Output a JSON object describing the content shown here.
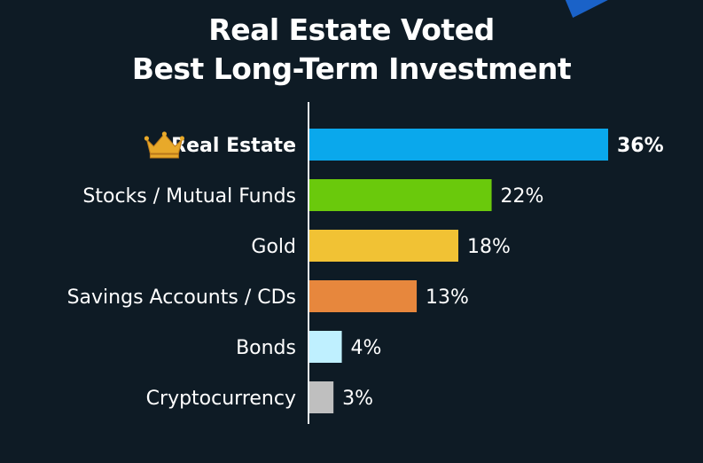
{
  "title": {
    "line1": "Real Estate Voted",
    "line2": "Best Long-Term Investment"
  },
  "top_icon": "crown-icon",
  "colors": {
    "background": "#0e1b25",
    "text": "#ffffff",
    "axis": "#e9eef2",
    "crown": "#e8a92a",
    "accent_corner": "#1a62c8"
  },
  "chart_data": {
    "type": "bar",
    "orientation": "horizontal",
    "title": "Real Estate Voted Best Long-Term Investment",
    "categories": [
      "Real Estate",
      "Stocks / Mutual Funds",
      "Gold",
      "Savings Accounts / CDs",
      "Bonds",
      "Cryptocurrency"
    ],
    "values": [
      36,
      22,
      18,
      13,
      4,
      3
    ],
    "value_labels": [
      "36%",
      "22%",
      "18%",
      "13%",
      "4%",
      "3%"
    ],
    "bar_colors": [
      "#0aa8ec",
      "#6ac90c",
      "#f1c234",
      "#e7873d",
      "#bff0ff",
      "#bfbfbf"
    ],
    "unit": "%",
    "xlim": [
      0,
      36
    ],
    "grid": false,
    "legend": "none",
    "highlight": "Real Estate"
  }
}
